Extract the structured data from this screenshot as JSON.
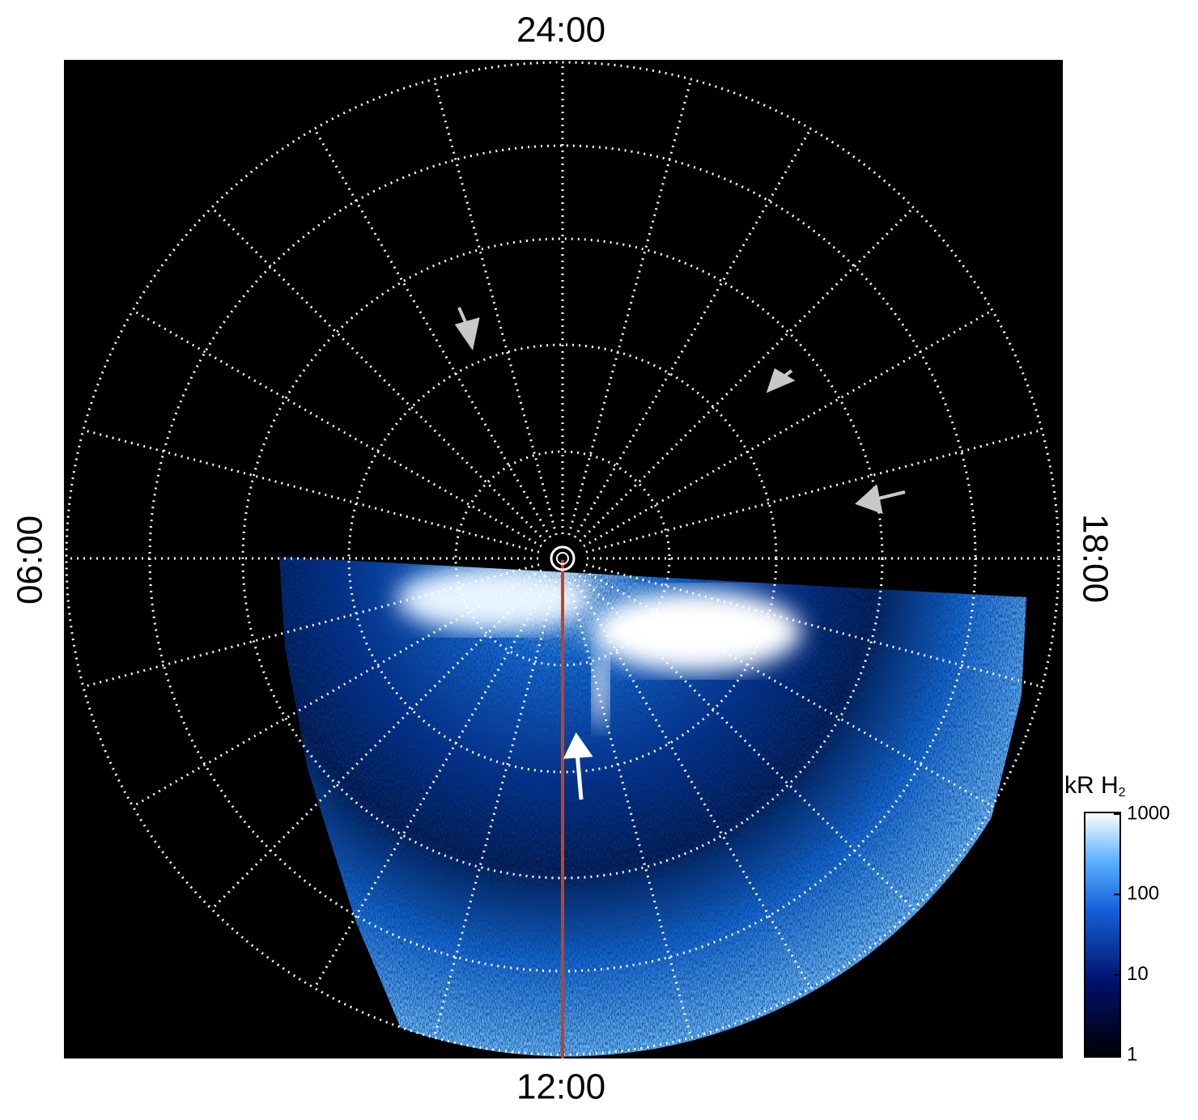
{
  "labels": {
    "top": "24:00",
    "bottom": "12:00",
    "left": "06:00",
    "right": "18:00"
  },
  "colorbar": {
    "title": "kR H",
    "title_sub": "2",
    "scale": "log",
    "lim": [
      1,
      1000
    ],
    "ticks": [
      1,
      10,
      100,
      1000
    ]
  }
}
